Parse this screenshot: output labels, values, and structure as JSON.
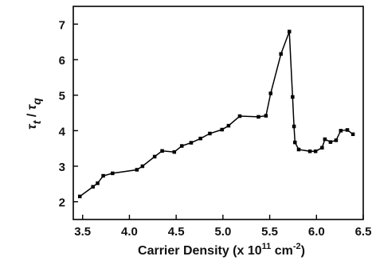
{
  "chart_data": {
    "type": "line",
    "xlabel": "Carrier Density (x 10",
    "xlabel_sup1": "11",
    "xlabel_unit": " cm",
    "xlabel_sup2": "-2",
    "xlabel_end": ")",
    "ylabel_num": "τ",
    "ylabel_num_sub": "t",
    "ylabel_sep": " / ",
    "ylabel_den": "τ",
    "ylabel_den_sub": "q",
    "xlim": [
      3.4,
      6.5
    ],
    "ylim": [
      1.5,
      7.5
    ],
    "x_ticks": [
      "3.5",
      "4.0",
      "4.5",
      "5.0",
      "5.5",
      "6.0",
      "6.5"
    ],
    "y_ticks": [
      "2",
      "3",
      "4",
      "5",
      "6",
      "7"
    ],
    "grid": false,
    "series": [
      {
        "marker": "square",
        "color": "#000000",
        "x": [
          3.47,
          3.61,
          3.66,
          3.72,
          3.82,
          4.08,
          4.14,
          4.27,
          4.35,
          4.48,
          4.56,
          4.66,
          4.76,
          4.86,
          4.99,
          5.06,
          5.18,
          5.38,
          5.46,
          5.51,
          5.62,
          5.71,
          5.745,
          5.76,
          5.77,
          5.81,
          5.93,
          5.99,
          6.06,
          6.09,
          6.15,
          6.21,
          6.26,
          6.33,
          6.39
        ],
        "y": [
          2.15,
          2.42,
          2.52,
          2.73,
          2.8,
          2.9,
          3.0,
          3.27,
          3.43,
          3.4,
          3.57,
          3.66,
          3.78,
          3.92,
          4.03,
          4.14,
          4.41,
          4.39,
          4.42,
          5.05,
          6.16,
          6.79,
          4.95,
          4.12,
          3.67,
          3.47,
          3.42,
          3.42,
          3.52,
          3.76,
          3.68,
          3.73,
          4.0,
          4.02,
          3.9
        ]
      }
    ]
  }
}
